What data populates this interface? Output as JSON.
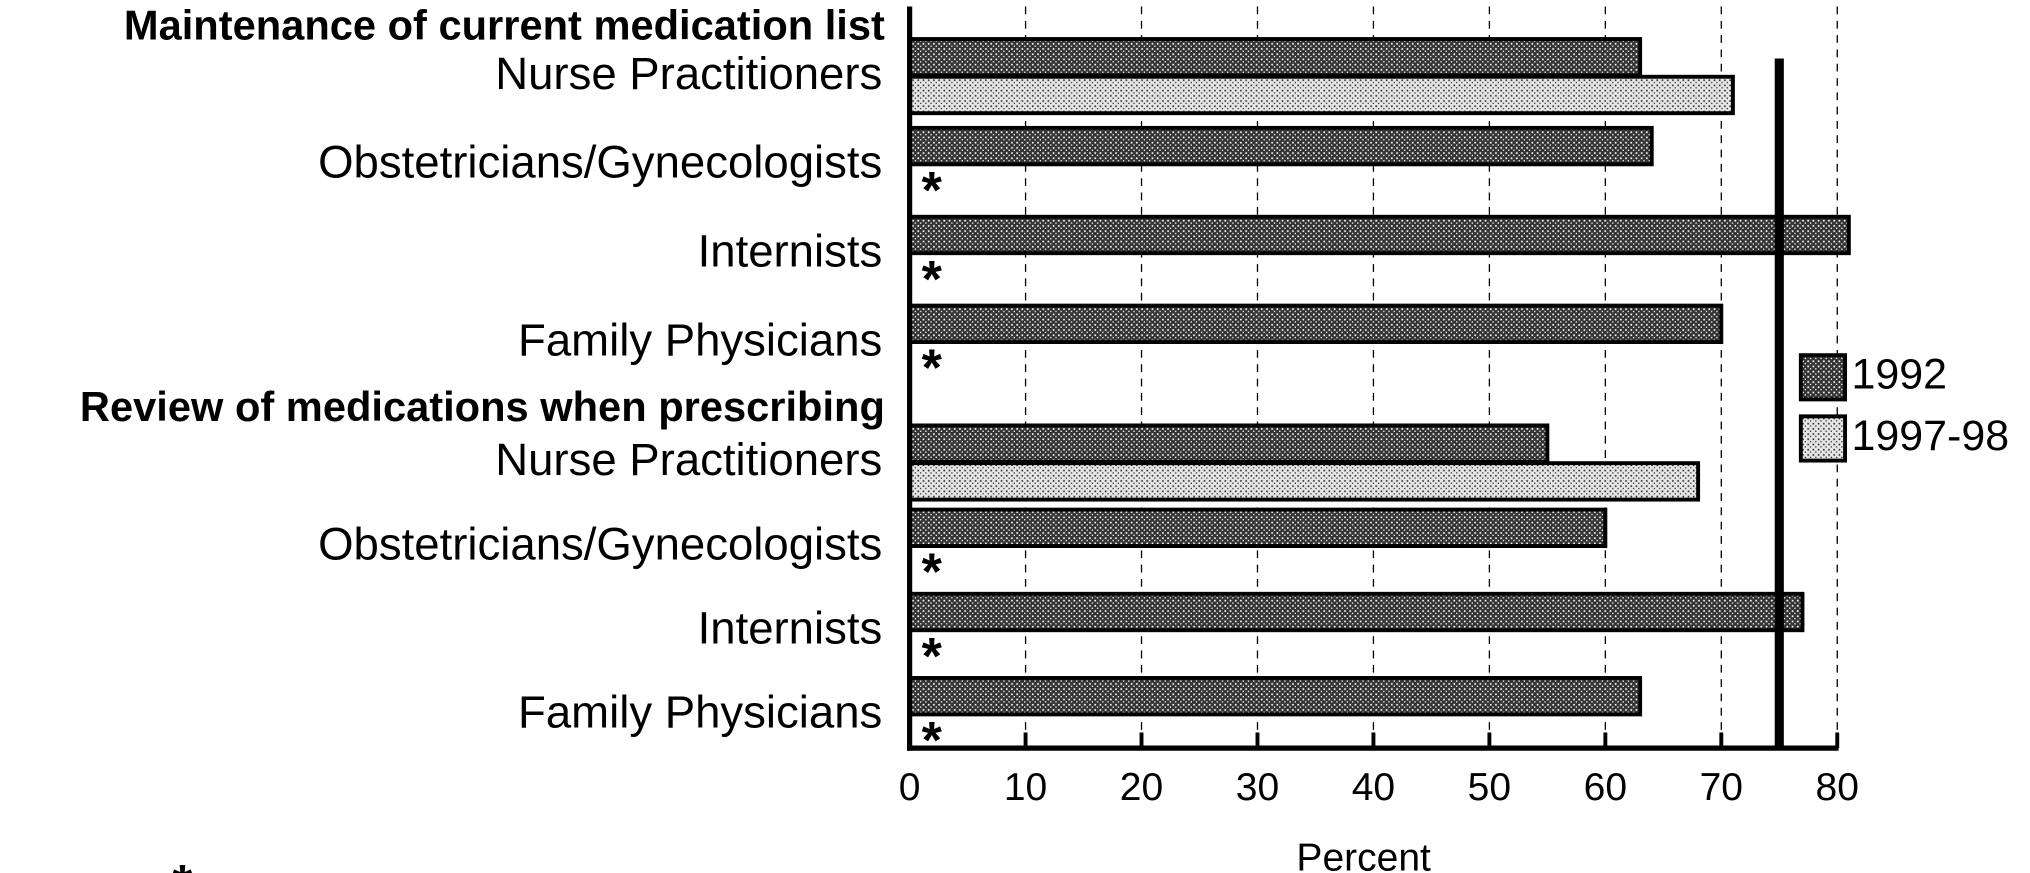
{
  "chart_data": {
    "type": "bar",
    "orientation": "horizontal",
    "groups": [
      {
        "title": "Maintenance of current medication list",
        "categories": [
          "Nurse Practitioners",
          "Obstetricians/Gynecologists",
          "Internists",
          "Family Physicians"
        ]
      },
      {
        "title": "Review of medications when prescribing",
        "categories": [
          "Nurse Practitioners",
          "Obstetricians/Gynecologists",
          "Internists",
          "Family Physicians"
        ]
      }
    ],
    "series": [
      {
        "name": "1992",
        "color": "#333333",
        "values": [
          63,
          64,
          81,
          70,
          55,
          60,
          77,
          63
        ]
      },
      {
        "name": "1997-98",
        "color": "#e6e6e6",
        "values": [
          71,
          null,
          null,
          null,
          68,
          null,
          null,
          null
        ]
      }
    ],
    "missing_marker": "*",
    "reference_line": 75,
    "xlabel": "Percent",
    "xlim": [
      0,
      80
    ],
    "xticks": [
      0,
      10,
      20,
      30,
      40,
      50,
      60,
      70,
      80
    ],
    "grid": true,
    "legend": "right",
    "footnote": "*"
  }
}
